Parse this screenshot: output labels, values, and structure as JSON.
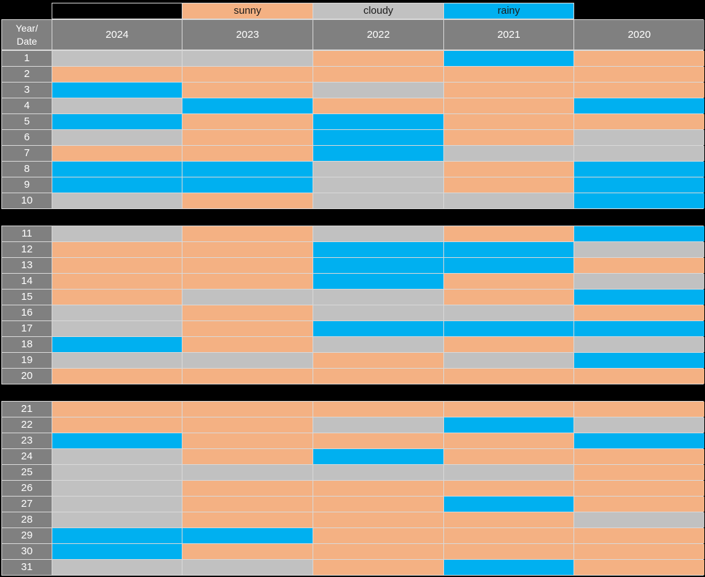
{
  "chart_data": {
    "type": "heatmap",
    "title": "",
    "description": "Calendar-style weather table: dates 1-31 (rows) by year 2024-2020 (columns), cell color encodes weather category",
    "row_label_header": "Year/\nDate",
    "columns": [
      "2024",
      "2023",
      "2022",
      "2021",
      "2020"
    ],
    "legend_items": [
      {
        "label": "sunny",
        "color": "#F4B183"
      },
      {
        "label": "cloudy",
        "color": "#C1C1C1"
      },
      {
        "label": "rainy",
        "color": "#00B0F0"
      }
    ],
    "colors": {
      "sunny": "#F4B183",
      "cloudy": "#C1C1C1",
      "rainy": "#00B0F0",
      "header_bg": "#808080",
      "header_text": "#FFFFFF",
      "grid_line": "#D9D9D9",
      "background": "#000000"
    },
    "layout": {
      "legend_position": "top",
      "row_groups": [
        [
          1,
          10
        ],
        [
          11,
          20
        ],
        [
          21,
          31
        ]
      ],
      "grid": true
    },
    "rows": [
      {
        "date": "1",
        "values": [
          "cloudy",
          "cloudy",
          "sunny",
          "rainy",
          "sunny"
        ]
      },
      {
        "date": "2",
        "values": [
          "sunny",
          "sunny",
          "sunny",
          "sunny",
          "sunny"
        ]
      },
      {
        "date": "3",
        "values": [
          "rainy",
          "sunny",
          "cloudy",
          "sunny",
          "sunny"
        ]
      },
      {
        "date": "4",
        "values": [
          "cloudy",
          "rainy",
          "sunny",
          "sunny",
          "rainy"
        ]
      },
      {
        "date": "5",
        "values": [
          "rainy",
          "sunny",
          "rainy",
          "sunny",
          "sunny"
        ]
      },
      {
        "date": "6",
        "values": [
          "cloudy",
          "sunny",
          "rainy",
          "sunny",
          "cloudy"
        ]
      },
      {
        "date": "7",
        "values": [
          "sunny",
          "sunny",
          "rainy",
          "cloudy",
          "cloudy"
        ]
      },
      {
        "date": "8",
        "values": [
          "rainy",
          "rainy",
          "cloudy",
          "sunny",
          "rainy"
        ]
      },
      {
        "date": "9",
        "values": [
          "rainy",
          "rainy",
          "cloudy",
          "sunny",
          "rainy"
        ]
      },
      {
        "date": "10",
        "values": [
          "cloudy",
          "sunny",
          "cloudy",
          "cloudy",
          "rainy"
        ]
      },
      {
        "date": "11",
        "values": [
          "cloudy",
          "sunny",
          "cloudy",
          "sunny",
          "rainy"
        ]
      },
      {
        "date": "12",
        "values": [
          "sunny",
          "sunny",
          "rainy",
          "rainy",
          "cloudy"
        ]
      },
      {
        "date": "13",
        "values": [
          "sunny",
          "sunny",
          "rainy",
          "rainy",
          "sunny"
        ]
      },
      {
        "date": "14",
        "values": [
          "sunny",
          "sunny",
          "rainy",
          "sunny",
          "cloudy"
        ]
      },
      {
        "date": "15",
        "values": [
          "sunny",
          "cloudy",
          "cloudy",
          "sunny",
          "rainy"
        ]
      },
      {
        "date": "16",
        "values": [
          "cloudy",
          "sunny",
          "cloudy",
          "cloudy",
          "sunny"
        ]
      },
      {
        "date": "17",
        "values": [
          "cloudy",
          "sunny",
          "rainy",
          "rainy",
          "rainy"
        ]
      },
      {
        "date": "18",
        "values": [
          "rainy",
          "sunny",
          "cloudy",
          "sunny",
          "cloudy"
        ]
      },
      {
        "date": "19",
        "values": [
          "cloudy",
          "cloudy",
          "sunny",
          "cloudy",
          "rainy"
        ]
      },
      {
        "date": "20",
        "values": [
          "sunny",
          "sunny",
          "sunny",
          "sunny",
          "sunny"
        ]
      },
      {
        "date": "21",
        "values": [
          "sunny",
          "sunny",
          "sunny",
          "sunny",
          "sunny"
        ]
      },
      {
        "date": "22",
        "values": [
          "sunny",
          "sunny",
          "cloudy",
          "rainy",
          "cloudy"
        ]
      },
      {
        "date": "23",
        "values": [
          "rainy",
          "sunny",
          "sunny",
          "sunny",
          "rainy"
        ]
      },
      {
        "date": "24",
        "values": [
          "cloudy",
          "sunny",
          "rainy",
          "sunny",
          "sunny"
        ]
      },
      {
        "date": "25",
        "values": [
          "cloudy",
          "cloudy",
          "cloudy",
          "cloudy",
          "sunny"
        ]
      },
      {
        "date": "26",
        "values": [
          "cloudy",
          "sunny",
          "sunny",
          "sunny",
          "sunny"
        ]
      },
      {
        "date": "27",
        "values": [
          "cloudy",
          "sunny",
          "sunny",
          "rainy",
          "sunny"
        ]
      },
      {
        "date": "28",
        "values": [
          "cloudy",
          "sunny",
          "sunny",
          "sunny",
          "cloudy"
        ]
      },
      {
        "date": "29",
        "values": [
          "rainy",
          "rainy",
          "sunny",
          "sunny",
          "sunny"
        ]
      },
      {
        "date": "30",
        "values": [
          "rainy",
          "sunny",
          "sunny",
          "sunny",
          "sunny"
        ]
      },
      {
        "date": "31",
        "values": [
          "cloudy",
          "cloudy",
          "sunny",
          "rainy",
          "sunny"
        ]
      }
    ]
  }
}
